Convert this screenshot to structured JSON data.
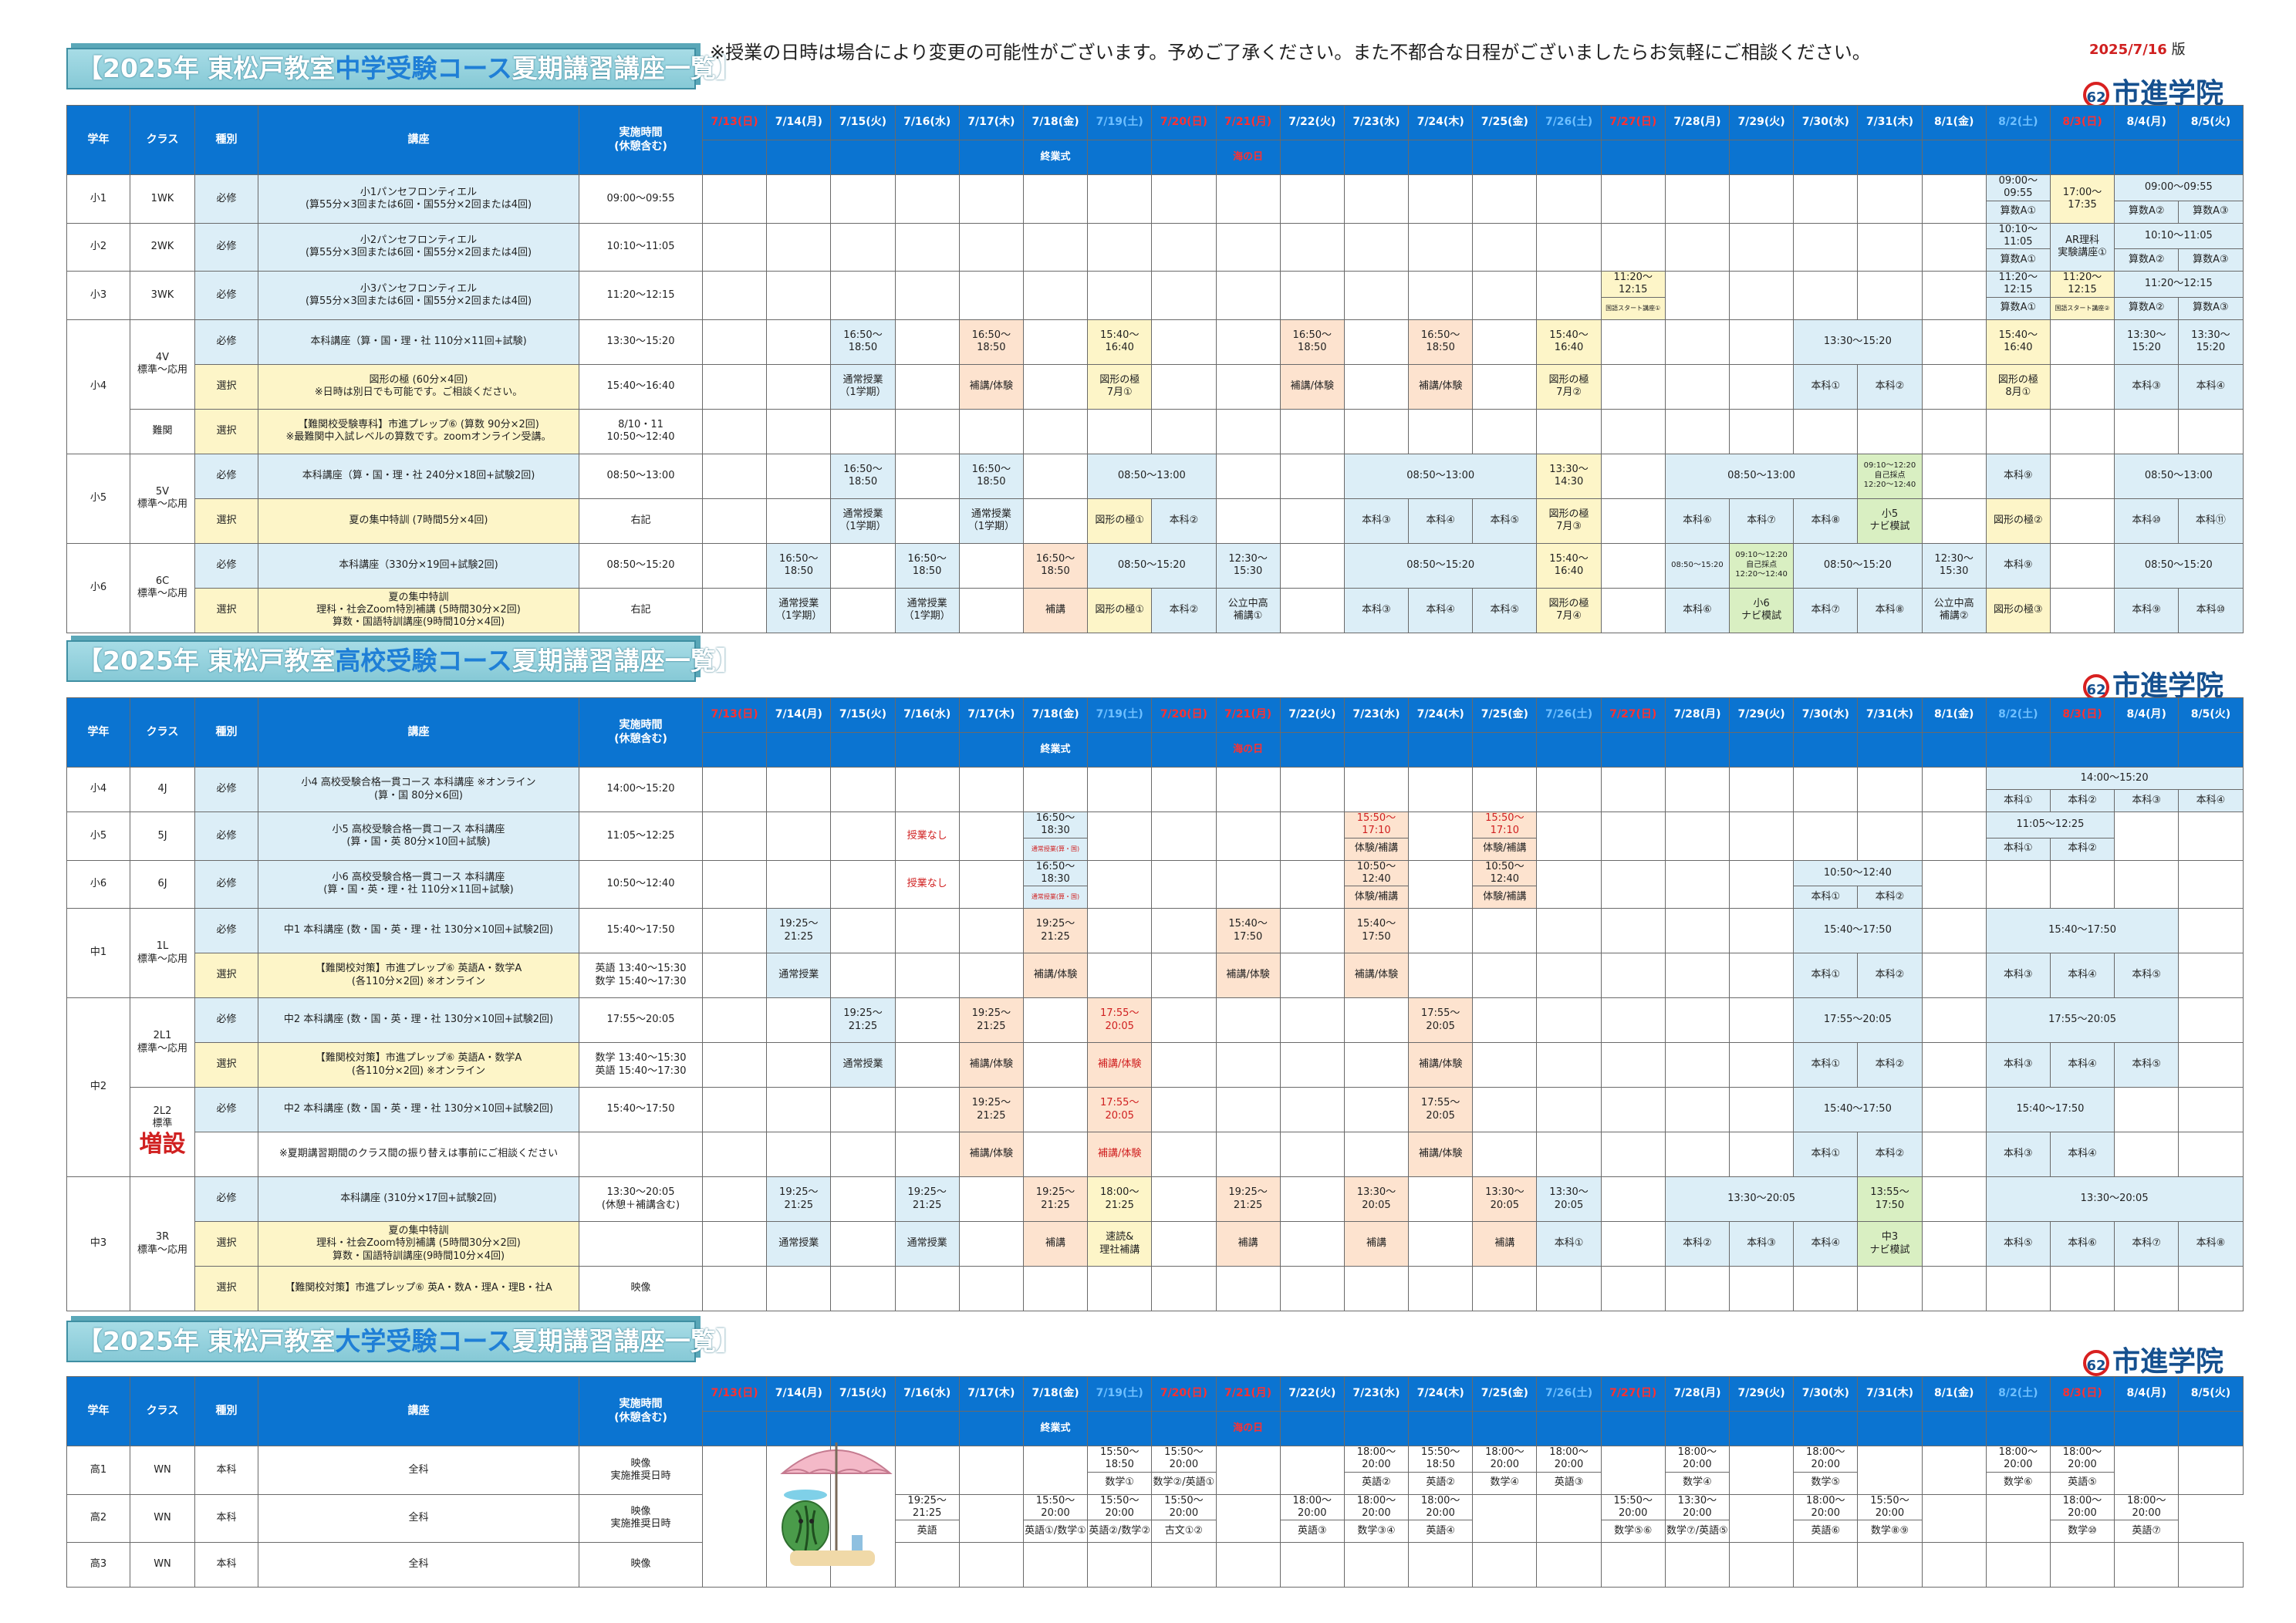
{
  "notice": "※授業の日時は場合により変更の可能性がございます。予めご了承ください。また不都合な日程がございましたらお気軽にご相談ください。",
  "version": {
    "date": "2025/7/16",
    "suffix": "版"
  },
  "logo": "市進学院",
  "headers": {
    "grade": "学年",
    "class": "クラス",
    "type": "種別",
    "course": "講座",
    "time": "実施時間\n(休憩含む)",
    "days": [
      "7/13(日)",
      "7/14(月)",
      "7/15(火)",
      "7/16(水)",
      "7/17(木)",
      "7/18(金)",
      "7/19(土)",
      "7/20(日)",
      "7/21(月)",
      "7/22(火)",
      "7/23(水)",
      "7/24(木)",
      "7/25(金)",
      "7/26(土)",
      "7/27(日)",
      "7/28(月)",
      "7/29(火)",
      "7/30(水)",
      "7/31(木)",
      "8/1(金)",
      "8/2(土)",
      "8/3(日)",
      "8/4(月)",
      "8/5(火)"
    ],
    "day_types": [
      "sun",
      "",
      "",
      "",
      "",
      "",
      "sat",
      "sun",
      "sun",
      "",
      "",
      "",
      "",
      "sat",
      "sun",
      "",
      "",
      "",
      "",
      "",
      "sat",
      "sun",
      "",
      ""
    ],
    "end_ceremony": "終業式",
    "holiday": "海の日"
  },
  "sections": [
    {
      "title_pre": "【2025年 東松戸教室",
      "title_hl": "中学受験コース",
      "title_post": "夏期講習講座一覧】"
    },
    {
      "title_pre": "【2025年 東松戸教室",
      "title_hl": "高校受験コース",
      "title_post": "夏期講習講座一覧】"
    },
    {
      "title_pre": "【2025年 東松戸教室",
      "title_hl": "大学受験コース",
      "title_post": "夏期講習講座一覧】"
    }
  ],
  "t1": {
    "r1": {
      "g": "小1",
      "c": "1WK",
      "t": "必修",
      "course": "小1パンセフロンティエル\n(算55分×3回または6回・国55分×2回または4回)",
      "time": "09:00～09:55",
      "d20a": "09:00～09:55",
      "d20b": "算数A①",
      "d21a": "17:00～17:35",
      "d22": "09:00～09:55",
      "d22b1": "算数A②",
      "d22b2": "算数A③"
    },
    "r2": {
      "g": "小2",
      "c": "2WK",
      "t": "必修",
      "course": "小2パンセフロンティエル\n(算55分×3回または6回・国55分×2回または4回)",
      "time": "10:10～11:05",
      "d20a": "10:10～11:05",
      "d20b": "算数A①",
      "d21": "AR理科\n実験講座①",
      "d22": "10:10～11:05",
      "d22b1": "算数A②",
      "d22b2": "算数A③"
    },
    "r3": {
      "g": "小3",
      "c": "3WK",
      "t": "必修",
      "course": "小3パンセフロンティエル\n(算55分×3回または6回・国55分×2回または4回)",
      "time": "11:20～12:15",
      "d14a": "11:20～12:15",
      "d14b": "国語スタート講座①",
      "d20a": "11:20～12:15",
      "d20b": "算数A①",
      "d21a": "11:20～12:15",
      "d21b": "国語スタート講座②",
      "d22": "11:20～12:15",
      "d22b1": "算数A②",
      "d22b2": "算数A③"
    },
    "g4": {
      "g": "小4",
      "c": "4V\n標準～応用",
      "t1": "必修",
      "course1": "本科講座（算・国・理・社 110分×11回+試験)",
      "time1": "13:30～15:20",
      "t2": "選択",
      "course2": "図形の極 (60分×4回)\n※日時は別日でも可能です。ご相談ください。",
      "time2": "15:40～16:40",
      "c3": "難関",
      "t3": "選択",
      "course3": "【難関校受験専科】市進プレップ⑥ (算数 90分×2回)\n※最難関中入試レベルの算数です。zoomオンライン受講。",
      "time3": "8/10・11\n10:50～12:40",
      "a_1550": "16:50～18:50",
      "a_kyu": "15:40～16:40",
      "a_1330": "13:30～15:20",
      "a_1540": "15:40～16:40",
      "a_1330b": "13:30～15:20",
      "b_tsujo": "通常授業\n（1学期）",
      "b_hoko": "補講/体験",
      "b_zukei7": "図形の極\n7月①",
      "b_zukei7b": "図形の極\n7月②",
      "b_honka1": "本科①",
      "b_honka2": "本科②",
      "b_zukei8": "図形の極\n8月①",
      "b_honka3": "本科③",
      "b_honka4": "本科④"
    },
    "g5": {
      "g": "小5",
      "c": "5V\n標準～応用",
      "t1": "必修",
      "course1": "本科講座（算・国・理・社 240分×18回+試験2回)",
      "time1": "08:50～13:00",
      "t2": "選択",
      "course2": "夏の集中特訓 (7時間5分×4回)",
      "time2": "右記",
      "a_1650": "16:50～18:50",
      "a_0850": "08:50～13:00",
      "a_1330": "13:30～14:30",
      "a_nav": "09:10～12:20\n自己採点\n12:20～12:40",
      "honka": [
        "本科①",
        "本科②",
        "本科③",
        "本科④",
        "本科⑤",
        "本科⑥",
        "本科⑦",
        "本科⑧",
        "本科⑨",
        "本科⑩",
        "本科⑪"
      ],
      "zukei1": "図形の極①",
      "zukei2": "図形の極\n7月③",
      "zukei3": "図形の極②",
      "nav": "小5\nナビ模試",
      "tsujo": "通常授業\n（1学期）"
    },
    "g6": {
      "g": "小6",
      "c": "6C\n標準～応用",
      "t1": "必修",
      "course1": "本科講座（330分×19回+試験2回)",
      "time1": "08:50～15:20",
      "t2": "選択",
      "course2": "夏の集中特訓\n理科・社会Zoom特別補講 (5時間30分×2回)\n算数・国語特訓講座(9時間10分×4回)",
      "time2": "右記",
      "a_1650": "16:50～18:50",
      "a_0850": "08:50～15:20",
      "a_1230": "12:30～15:30",
      "a_1540": "15:40～16:40",
      "a_1540b": "15:40～16:40",
      "a_nav": "09:10～12:20\n自己採点\n12:20～12:40",
      "honka": [
        "本科①",
        "本科②",
        "本科③",
        "本科④",
        "本科⑤",
        "本科⑥",
        "本科⑦",
        "本科⑧",
        "本科⑨",
        "本科⑩"
      ],
      "tsujo": "通常授業\n（1学期）",
      "hoko": "補講",
      "kouritsu1": "公立中高\n補講①",
      "kouritsu2": "公立中高\n補講②",
      "zukei1": "図形の極①",
      "zukei2": "図形の極②",
      "zukei3": "図形の極③",
      "zukei4": "図形の極\n7月④",
      "nav": "小6\nナビ模試"
    }
  },
  "t2": {
    "r4": {
      "g": "小4",
      "c": "4J",
      "t": "必修",
      "course": "小4 高校受験合格一貫コース 本科講座 ※オンライン\n(算・国 80分×6回)",
      "time": "14:00～15:20",
      "a": "14:00～15:20",
      "b": [
        "本科①",
        "本科②",
        "本科③",
        "本科④"
      ]
    },
    "r5": {
      "g": "小5",
      "c": "5J",
      "t": "必修",
      "course": "小5 高校受験合格一貫コース 本科講座\n(算・国・英 80分×10回+試験)",
      "time": "11:05～12:25",
      "none": "授業なし",
      "a1": "16:50～18:30",
      "b1": "通常授業(算・国)",
      "a2": "15:50～17:10",
      "b2": "体験/補講",
      "a3": "15:50～17:10",
      "b3": "体験/補講",
      "a4": "11:05～12:25",
      "b4": [
        "本科①",
        "本科②"
      ]
    },
    "r6": {
      "g": "小6",
      "c": "6J",
      "t": "必修",
      "course": "小6 高校受験合格一貫コース 本科講座\n(算・国・英・理・社 110分×11回+試験)",
      "time": "10:50～12:40",
      "none": "授業なし",
      "a1": "16:50～18:30",
      "b1": "通常授業(算・国)",
      "a2": "10:50～12:40",
      "b2": "体験/補講",
      "a3": "10:50～12:40",
      "b3": "体験/補講",
      "a4": "10:50～12:40",
      "b4": [
        "本科①",
        "本科②"
      ]
    },
    "m1": {
      "g": "中1",
      "c": "1L\n標準～応用",
      "t1": "必修",
      "course1": "中1 本科講座 (数・国・英・理・社 130分×10回+試験2回)",
      "time1": "15:40～17:50",
      "t2": "選択",
      "course2": "【難関校対策】市進プレップ⑥ 英語A・数学A\n(各110分×2回) ※オンライン",
      "time2": "英語 13:40～15:30\n数学 15:40～17:30",
      "a1": "19:25～21:25",
      "a2": "19:25～21:25",
      "a3": "15:40～17:50",
      "a4": "15:40～17:50",
      "a5": "15:40～17:50",
      "a6": "15:40～17:50",
      "b1": "通常授業",
      "b2": "補講/体験",
      "b3": "補講/体験",
      "b4": "補講/体験",
      "honka": [
        "本科①",
        "本科②",
        "本科③",
        "本科④",
        "本科⑤"
      ]
    },
    "m2": {
      "g": "中2",
      "c1": "2L1\n標準～応用",
      "c2": "2L2\n標準",
      "zou": "増設",
      "t1": "必修",
      "course1": "中2 本科講座 (数・国・英・理・社 130分×10回+試験2回)",
      "time1": "17:55～20:05",
      "t2": "選択",
      "course2": "【難関校対策】市進プレップ⑥ 英語A・数学A\n(各110分×2回) ※オンライン",
      "time2": "数学 13:40～15:30\n英語 15:40～17:30",
      "t3": "必修",
      "course3": "中2 本科講座 (数・国・英・理・社 130分×10回+試験2回)",
      "time3": "15:40～17:50",
      "course4": "※夏期講習期間のクラス間の振り替えは事前にご相談ください",
      "a1": "19:25～21:25",
      "a2": "19:25～21:25",
      "a3": "17:55～20:05",
      "a4": "17:55～20:05",
      "a5": "17:55～20:05",
      "a6": "17:55～20:05",
      "b1": "通常授業",
      "b2": "補講/体験",
      "b3": "補講/体験",
      "b4": "補講/体験",
      "c_a1": "19:25～21:25",
      "c_a2": "17:55～20:05",
      "c_a3": "17:55～20:05",
      "c_a4": "15:40～17:50",
      "c_a5": "15:40～17:50",
      "honka": [
        "本科①",
        "本科②",
        "本科③",
        "本科④",
        "本科⑤"
      ]
    },
    "m3": {
      "g": "中3",
      "c": "3R\n標準～応用",
      "t1": "必修",
      "course1": "本科講座 (310分×17回+試験2回)",
      "time1": "13:30～20:05\n(休憩＋補講含む)",
      "t2": "選択",
      "course2": "夏の集中特訓\n理科・社会Zoom特別補講 (5時間30分×2回)\n算数・国語特訓講座(9時間10分×4回)",
      "t3": "選択",
      "course3": "【難関校対策】市進プレップ⑥ 英A・数A・理A・理B・社A",
      "time3": "映像",
      "a1": "19:25～21:25",
      "a2": "19:25～21:25",
      "a3": "19:25～21:25",
      "a4": "18:00～21:25",
      "a5": "19:25～21:25",
      "a6": "13:30～20:05",
      "a7": "13:30～20:05",
      "a8": "13:30～20:05",
      "a9": "13:30～20:05",
      "a10": "13:55～17:50",
      "a11": "13:30～20:05",
      "b1": "通常授業",
      "b2": "通常授業",
      "b3": "補講",
      "b4": "速読&\n理社補講",
      "b5": "補講",
      "b6": "補講",
      "b7": "補講",
      "nav": "中3\nナビ模試",
      "honka": [
        "本科①",
        "本科②",
        "本科③",
        "本科④",
        "本科⑤",
        "本科⑥",
        "本科⑦",
        "本科⑧"
      ]
    }
  },
  "t3": {
    "k1": {
      "g": "高1",
      "c": "WN",
      "t": "本科",
      "course": "全科",
      "time": "映像\n実施推奨日時",
      "a": [
        "15:50～18:50",
        "15:50～20:00",
        "18:00～20:00",
        "15:50～18:50",
        "18:00～20:00",
        "18:00～20:00",
        "18:00～20:00",
        "18:00～20:00",
        "18:00～20:00",
        "18:00～20:00"
      ],
      "b": [
        "数学①",
        "数学②/英語①",
        "英語②",
        "英語②",
        "数学④",
        "英語③",
        "数学④",
        "数学⑤",
        "数学⑥",
        "英語⑤"
      ]
    },
    "k2": {
      "g": "高2",
      "c": "WN",
      "t": "本科",
      "course": "全科",
      "time": "映像\n実施推奨日時",
      "a": [
        "19:25～21:25",
        "15:50～20:00",
        "15:50～20:00",
        "15:50～20:00",
        "18:00～20:00",
        "18:00～20:00",
        "18:00～20:00",
        "15:50～20:00",
        "13:30～20:00",
        "18:00～20:00",
        "15:50～20:00",
        "18:00～20:00",
        "18:00～20:00"
      ],
      "b": [
        "英語",
        "英語①/数学①",
        "英語②/数学②",
        "古文①②",
        "英語③",
        "数学③④",
        "英語④",
        "数学⑤⑥",
        "数学⑦/英語⑤",
        "英語⑥",
        "数学⑧⑨",
        "数学⑩",
        "英語⑦"
      ]
    },
    "k3": {
      "g": "高3",
      "c": "WN",
      "t": "本科",
      "course": "全科",
      "time": "映像"
    }
  }
}
